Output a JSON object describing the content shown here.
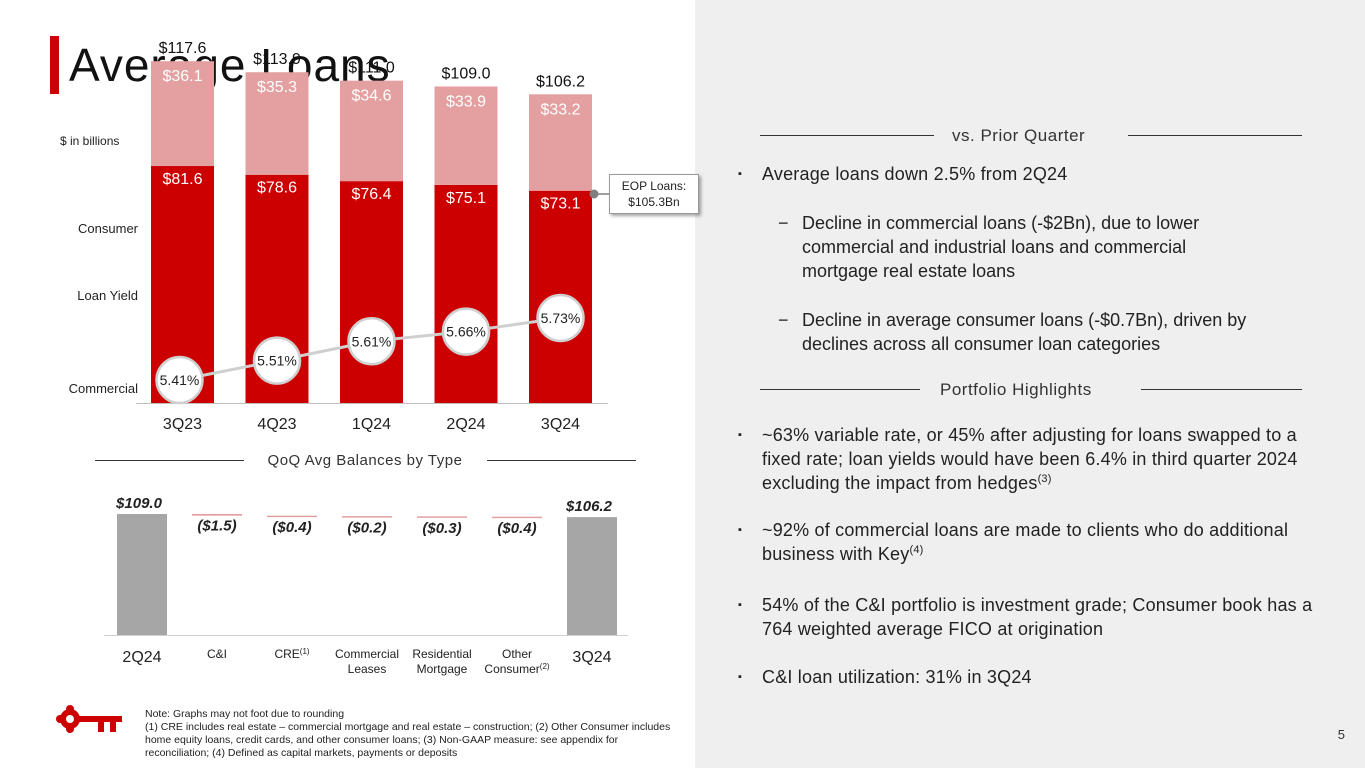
{
  "title": "Average Loans",
  "unit_label": "$ in billions",
  "side_labels": {
    "consumer": "Consumer",
    "loan_yield": "Loan Yield",
    "commercial": "Commercial"
  },
  "eop_callout": {
    "line1": "EOP Loans:",
    "line2": "$105.3Bn"
  },
  "colors": {
    "commercial": "#cc0000",
    "consumer": "#e4a0a0",
    "yield_line": "#cfcfcf",
    "waterfall_total": "#a6a6a6",
    "waterfall_decline": "#e4a0a0",
    "accent": "#cc0000"
  },
  "chart_data": [
    {
      "type": "bar",
      "stacked": true,
      "categories": [
        "3Q23",
        "4Q23",
        "1Q24",
        "2Q24",
        "3Q24"
      ],
      "series": [
        {
          "name": "Commercial",
          "values": [
            81.6,
            78.6,
            76.4,
            75.1,
            73.1
          ],
          "labels": [
            "$81.6",
            "$78.6",
            "$76.4",
            "$75.1",
            "$73.1"
          ]
        },
        {
          "name": "Consumer",
          "values": [
            36.1,
            35.3,
            34.6,
            33.9,
            33.2
          ],
          "labels": [
            "$36.1",
            "$35.3",
            "$34.6",
            "$33.9",
            "$33.2"
          ]
        }
      ],
      "totals": [
        117.6,
        113.9,
        111.0,
        109.0,
        106.2
      ],
      "total_labels": [
        "$117.6",
        "$113.9",
        "$111.0",
        "$109.0",
        "$106.2"
      ],
      "ylim": [
        0,
        125
      ],
      "overlay": {
        "type": "line",
        "name": "Loan Yield",
        "values": [
          5.41,
          5.51,
          5.61,
          5.66,
          5.73
        ],
        "labels": [
          "5.41%",
          "5.51%",
          "5.61%",
          "5.66%",
          "5.73%"
        ]
      }
    },
    {
      "type": "bar",
      "subtype": "waterfall",
      "title": "QoQ Avg Balances by Type",
      "categories": [
        "2Q24",
        "C&I",
        "CRE",
        "Commercial Leases",
        "Residential Mortgage",
        "Other Consumer",
        "3Q24"
      ],
      "category_sup": [
        "",
        "",
        "(1)",
        "",
        "",
        "(2)",
        ""
      ],
      "values": [
        109.0,
        -1.5,
        -0.4,
        -0.2,
        -0.3,
        -0.4,
        106.2
      ],
      "labels": [
        "$109.0",
        "($1.5)",
        "($0.4)",
        "($0.2)",
        "($0.3)",
        "($0.4)",
        "$106.2"
      ],
      "is_total": [
        true,
        false,
        false,
        false,
        false,
        false,
        true
      ]
    }
  ],
  "right": {
    "vs_prior_heading": "vs. Prior Quarter",
    "vs_prior": {
      "bullet1": "Average loans down 2.5% from 2Q24",
      "sub1": "Decline in commercial loans (-$2Bn), due to lower commercial and industrial loans and commercial mortgage real estate loans",
      "sub2": "Decline in average consumer loans (-$0.7Bn), driven by declines across all consumer loan categories"
    },
    "portfolio_heading": "Portfolio Highlights",
    "portfolio": {
      "b1": "~63% variable rate, or 45% after adjusting for loans swapped to a fixed rate; loan yields would have been 6.4% in third quarter 2024 excluding the impact from hedges",
      "b1_sup": "(3)",
      "b2": "~92% of commercial loans are made to clients who do additional business with Key",
      "b2_sup": "(4)",
      "b3": "54% of the C&I portfolio is investment grade; Consumer book has a 764 weighted average FICO at origination",
      "b4": "C&I loan utilization: 31% in 3Q24"
    },
    "bullet_mark": "▪",
    "sub_mark": "−"
  },
  "note": {
    "line1": "Note: Graphs may not foot due to rounding",
    "line2": "(1) CRE includes real estate – commercial mortgage and real estate – construction; (2) Other Consumer includes home equity loans, credit cards, and other consumer loans; (3) Non-GAAP measure: see appendix for reconciliation; (4) Defined as capital markets, payments or deposits"
  },
  "logo_icon": "key-logo-icon",
  "page_number": "5"
}
